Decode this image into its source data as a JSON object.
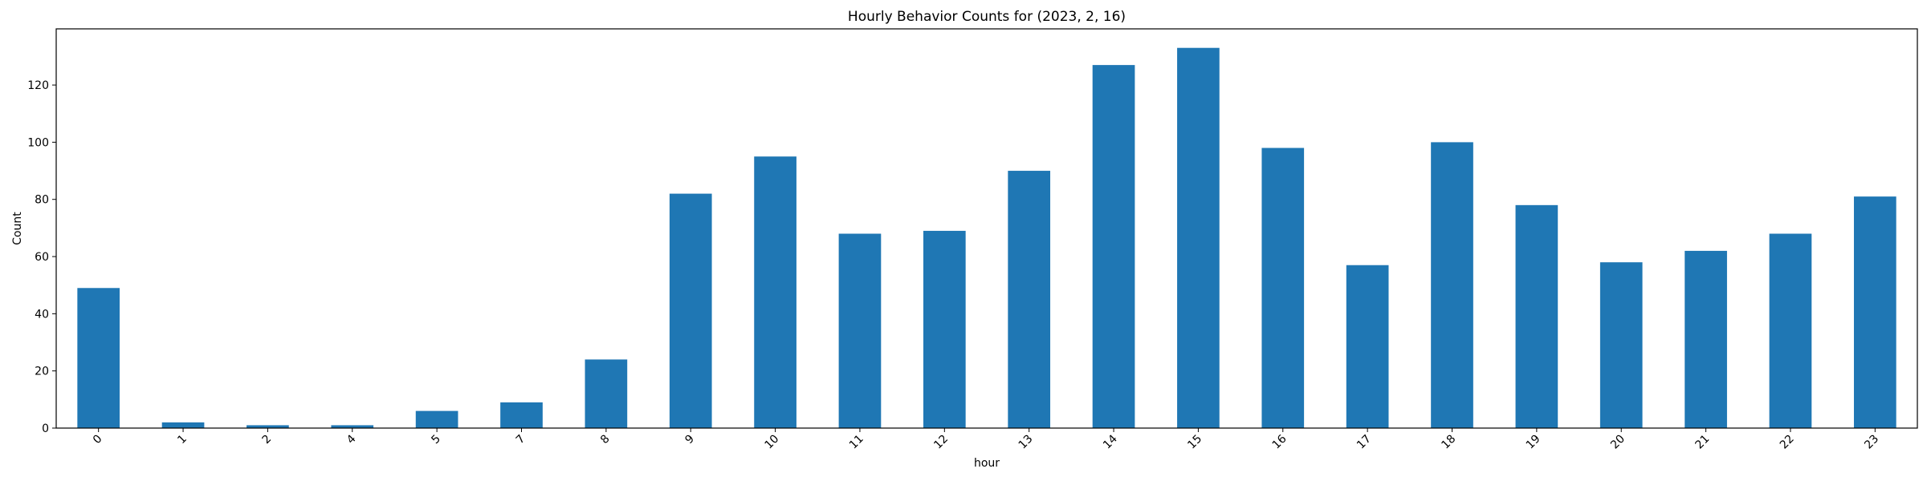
{
  "chart_data": {
    "type": "bar",
    "title": "Hourly Behavior Counts for (2023, 2, 16)",
    "xlabel": "hour",
    "ylabel": "Count",
    "categories": [
      "0",
      "1",
      "2",
      "4",
      "5",
      "7",
      "8",
      "9",
      "10",
      "11",
      "12",
      "13",
      "14",
      "15",
      "16",
      "17",
      "18",
      "19",
      "20",
      "21",
      "22",
      "23"
    ],
    "values": [
      49,
      2,
      1,
      1,
      6,
      9,
      24,
      82,
      95,
      68,
      69,
      90,
      127,
      133,
      98,
      57,
      100,
      78,
      58,
      62,
      68,
      81
    ],
    "ylim": [
      0,
      139.65
    ],
    "yticks": [
      0,
      20,
      40,
      60,
      80,
      100,
      120
    ],
    "bar_color": "#1f77b4",
    "grid": false,
    "legend": "none"
  }
}
